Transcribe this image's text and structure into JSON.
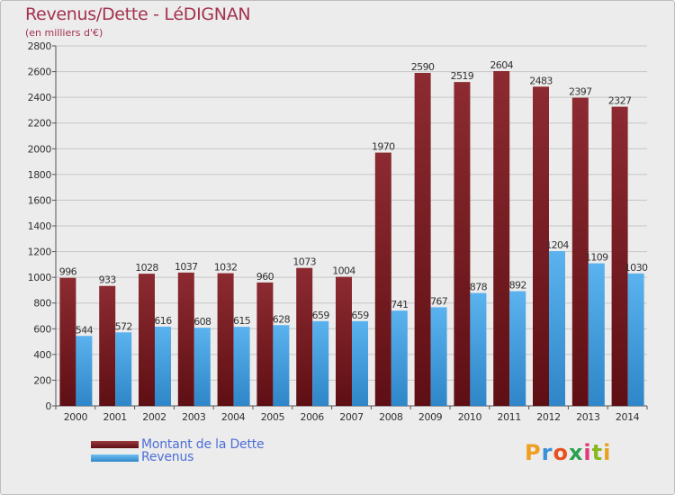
{
  "chart_data": {
    "type": "bar",
    "title": "Revenus/Dette - LéDIGNAN",
    "subtitle": "(en milliers d'€)",
    "categories": [
      "2000",
      "2001",
      "2002",
      "2003",
      "2004",
      "2005",
      "2006",
      "2007",
      "2008",
      "2009",
      "2010",
      "2011",
      "2012",
      "2013",
      "2014"
    ],
    "series": [
      {
        "name": "Montant de la Dette",
        "color": "#7a1e24",
        "values": [
          996,
          933,
          1028,
          1037,
          1032,
          960,
          1073,
          1004,
          1970,
          2590,
          2519,
          2604,
          2483,
          2397,
          2327
        ]
      },
      {
        "name": "Revenus",
        "color": "#4aa3e2",
        "values": [
          544,
          572,
          616,
          608,
          615,
          628,
          659,
          659,
          741,
          767,
          878,
          892,
          1204,
          1109,
          1030
        ]
      }
    ],
    "ylim": [
      0,
      2800
    ],
    "yticks": [
      0,
      200,
      400,
      600,
      800,
      1000,
      1200,
      1400,
      1600,
      1800,
      2000,
      2200,
      2400,
      2600,
      2800
    ],
    "grid": true,
    "legend_position": "bottom-left"
  },
  "logo": {
    "text": "Proxiti"
  }
}
